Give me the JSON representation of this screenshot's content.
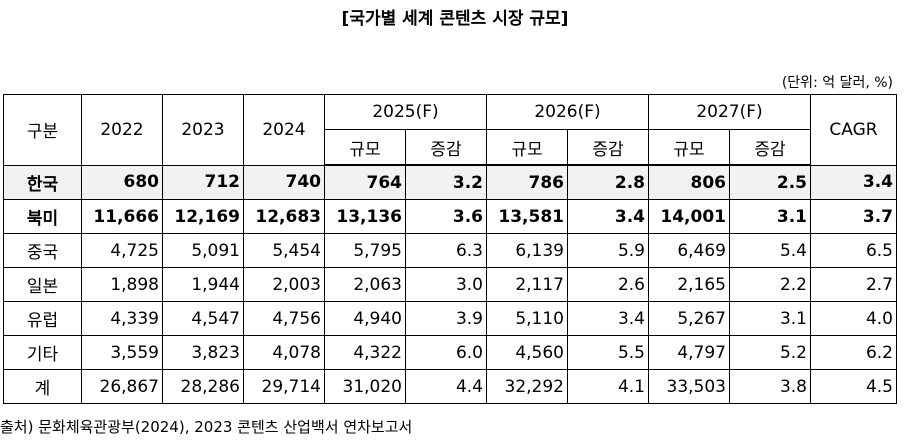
{
  "title": "[국가별 세계 콘텐츠 시장 규모]",
  "unit": "(단위: 억 달러, %)",
  "header": {
    "category": "구분",
    "y2022": "2022",
    "y2023": "2023",
    "y2024": "2024",
    "y2025": "2025(F)",
    "y2026": "2026(F)",
    "y2027": "2027(F)",
    "cagr": "CAGR",
    "size": "규모",
    "change": "증감"
  },
  "rows": [
    {
      "name": "한국",
      "v2022": "680",
      "v2023": "712",
      "v2024": "740",
      "s2025": "764",
      "c2025": "3.2",
      "s2026": "786",
      "c2026": "2.8",
      "s2027": "806",
      "c2027": "2.5",
      "cagr": "3.4"
    },
    {
      "name": "북미",
      "v2022": "11,666",
      "v2023": "12,169",
      "v2024": "12,683",
      "s2025": "13,136",
      "c2025": "3.6",
      "s2026": "13,581",
      "c2026": "3.4",
      "s2027": "14,001",
      "c2027": "3.1",
      "cagr": "3.7"
    },
    {
      "name": "중국",
      "v2022": "4,725",
      "v2023": "5,091",
      "v2024": "5,454",
      "s2025": "5,795",
      "c2025": "6.3",
      "s2026": "6,139",
      "c2026": "5.9",
      "s2027": "6,469",
      "c2027": "5.4",
      "cagr": "6.5"
    },
    {
      "name": "일본",
      "v2022": "1,898",
      "v2023": "1,944",
      "v2024": "2,003",
      "s2025": "2,063",
      "c2025": "3.0",
      "s2026": "2,117",
      "c2026": "2.6",
      "s2027": "2,165",
      "c2027": "2.2",
      "cagr": "2.7"
    },
    {
      "name": "유럽",
      "v2022": "4,339",
      "v2023": "4,547",
      "v2024": "4,756",
      "s2025": "4,940",
      "c2025": "3.9",
      "s2026": "5,110",
      "c2026": "3.4",
      "s2027": "5,267",
      "c2027": "3.1",
      "cagr": "4.0"
    },
    {
      "name": "기타",
      "v2022": "3,559",
      "v2023": "3,823",
      "v2024": "4,078",
      "s2025": "4,322",
      "c2025": "6.0",
      "s2026": "4,560",
      "c2026": "5.5",
      "s2027": "4,797",
      "c2027": "5.2",
      "cagr": "6.2"
    },
    {
      "name": "계",
      "v2022": "26,867",
      "v2023": "28,286",
      "v2024": "29,714",
      "s2025": "31,020",
      "c2025": "4.4",
      "s2026": "32,292",
      "c2026": "4.1",
      "s2027": "33,503",
      "c2027": "3.8",
      "cagr": "4.5"
    }
  ],
  "source": "출처) 문화체육관광부(2024), 2023 콘텐츠 산업백서 연차보고서"
}
